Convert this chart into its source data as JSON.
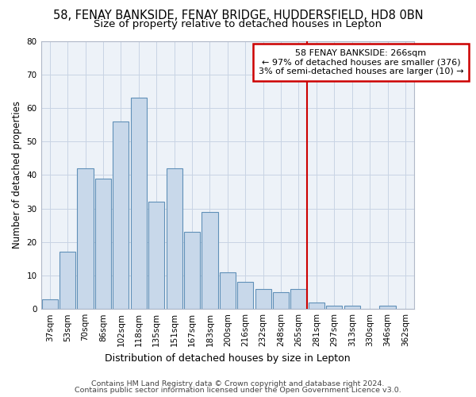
{
  "title1": "58, FENAY BANKSIDE, FENAY BRIDGE, HUDDERSFIELD, HD8 0BN",
  "title2": "Size of property relative to detached houses in Lepton",
  "xlabel": "Distribution of detached houses by size in Lepton",
  "ylabel": "Number of detached properties",
  "footer1": "Contains HM Land Registry data © Crown copyright and database right 2024.",
  "footer2": "Contains public sector information licensed under the Open Government Licence v3.0.",
  "categories": [
    "37sqm",
    "53sqm",
    "70sqm",
    "86sqm",
    "102sqm",
    "118sqm",
    "135sqm",
    "151sqm",
    "167sqm",
    "183sqm",
    "200sqm",
    "216sqm",
    "232sqm",
    "248sqm",
    "265sqm",
    "281sqm",
    "297sqm",
    "313sqm",
    "330sqm",
    "346sqm",
    "362sqm"
  ],
  "values": [
    3,
    17,
    42,
    39,
    56,
    63,
    32,
    42,
    23,
    29,
    11,
    8,
    6,
    5,
    6,
    2,
    1,
    1,
    0,
    1,
    0
  ],
  "bar_color": "#c8d8ea",
  "bar_edge_color": "#6090b8",
  "highlight_index": 14,
  "highlight_line_color": "#cc0000",
  "ann_line1": "58 FENAY BANKSIDE: 266sqm",
  "ann_line2": "← 97% of detached houses are smaller (376)",
  "ann_line3": "3% of semi-detached houses are larger (10) →",
  "annotation_box_color": "#ffffff",
  "annotation_box_edge": "#cc0000",
  "ylim": [
    0,
    80
  ],
  "yticks": [
    0,
    10,
    20,
    30,
    40,
    50,
    60,
    70,
    80
  ],
  "grid_color": "#c8d4e4",
  "bg_color": "#edf2f8",
  "title1_fontsize": 10.5,
  "title2_fontsize": 9.5,
  "xlabel_fontsize": 9,
  "ylabel_fontsize": 8.5,
  "tick_fontsize": 7.5,
  "ann_fontsize": 8,
  "footer_fontsize": 6.8
}
